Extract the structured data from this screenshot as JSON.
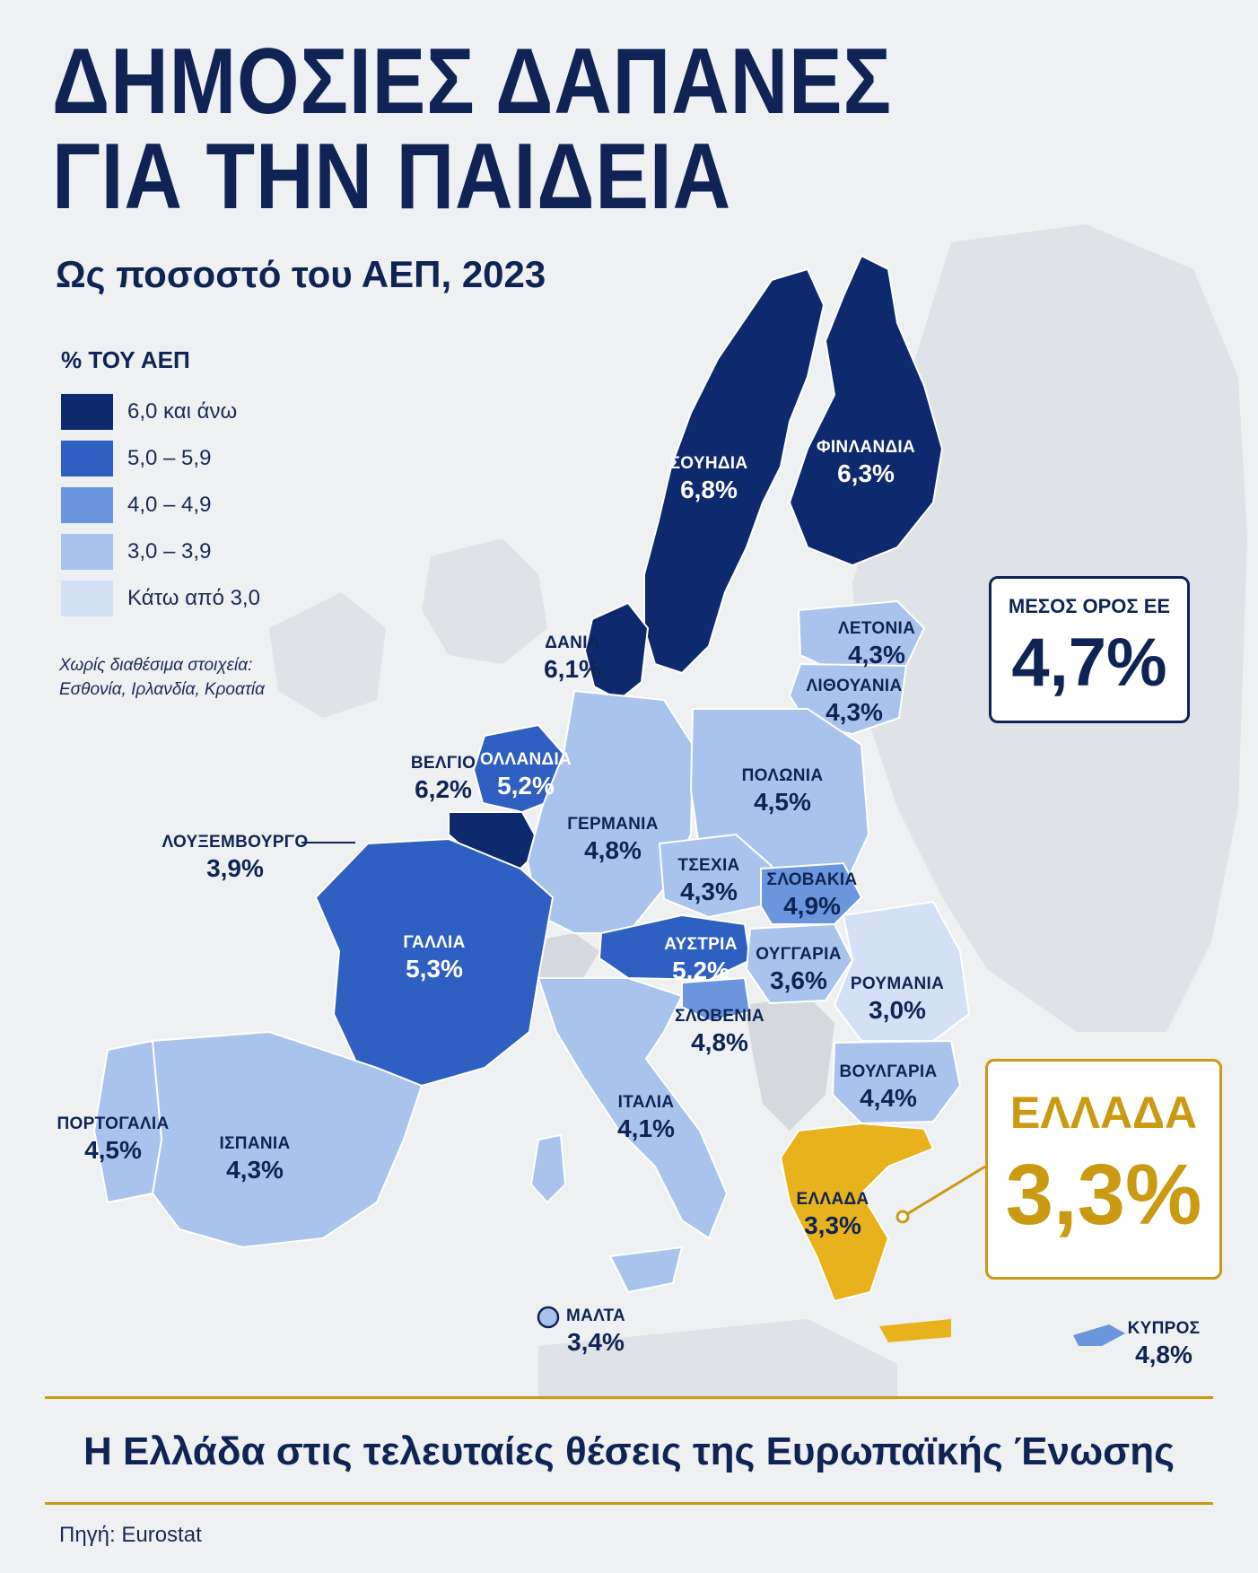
{
  "header": {
    "title_line1": "ΔΗΜΟΣΙΕΣ ΔΑΠΑΝΕΣ",
    "title_line2": "ΓΙΑ ΤΗΝ ΠΑΙΔΕΙΑ",
    "subtitle": "Ως ποσοστό του ΑΕΠ, 2023"
  },
  "legend": {
    "title": "% ΤΟΥ ΑΕΠ",
    "items": [
      {
        "label": "6,0 και άνω",
        "color": "#0d2a6e"
      },
      {
        "label": "5,0 – 5,9",
        "color": "#2f5fc0"
      },
      {
        "label": "4,0 – 4,9",
        "color": "#6b95dc"
      },
      {
        "label": "3,0 – 3,9",
        "color": "#a9c4ec"
      },
      {
        "label": "Κάτω από 3,0",
        "color": "#d3e0f6"
      }
    ],
    "note_line1": "Χωρίς διαθέσιμα στοιχεία:",
    "note_line2": "Εσθονία, Ιρλανδία, Κροατία"
  },
  "countries": {
    "sweden": {
      "name": "ΣΟΥΗΔΙΑ",
      "value": "6,8%",
      "pct": 6.8
    },
    "finland": {
      "name": "ΦΙΝΛΑΝΔΙΑ",
      "value": "6,3%",
      "pct": 6.3
    },
    "denmark": {
      "name": "ΔΑΝΙΑ",
      "value": "6,1%",
      "pct": 6.1
    },
    "latvia": {
      "name": "ΛΕΤΟΝΙΑ",
      "value": "4,3%",
      "pct": 4.3
    },
    "lithuania": {
      "name": "ΛΙΘΟΥΑΝΙΑ",
      "value": "4,3%",
      "pct": 4.3
    },
    "belgium": {
      "name": "ΒΕΛΓΙΟ",
      "value": "6,2%",
      "pct": 6.2
    },
    "netherlands": {
      "name": "ΟΛΛΑΝΔΙΑ",
      "value": "5,2%",
      "pct": 5.2
    },
    "luxembourg": {
      "name": "ΛΟΥΞΕΜΒΟΥΡΓΟ",
      "value": "3,9%",
      "pct": 3.9
    },
    "germany": {
      "name": "ΓΕΡΜΑΝΙΑ",
      "value": "4,8%",
      "pct": 4.8
    },
    "poland": {
      "name": "ΠΟΛΩΝΙΑ",
      "value": "4,5%",
      "pct": 4.5
    },
    "czechia": {
      "name": "ΤΣΕΧΙΑ",
      "value": "4,3%",
      "pct": 4.3
    },
    "slovakia": {
      "name": "ΣΛΟΒΑΚΙΑ",
      "value": "4,9%",
      "pct": 4.9
    },
    "france": {
      "name": "ΓΑΛΛΙΑ",
      "value": "5,3%",
      "pct": 5.3
    },
    "austria": {
      "name": "ΑΥΣΤΡΙΑ",
      "value": "5,2%",
      "pct": 5.2
    },
    "hungary": {
      "name": "ΟΥΓΓΑΡΙΑ",
      "value": "3,6%",
      "pct": 3.6
    },
    "romania": {
      "name": "ΡΟΥΜΑΝΙΑ",
      "value": "3,0%",
      "pct": 3.0
    },
    "slovenia": {
      "name": "ΣΛΟΒΕΝΙΑ",
      "value": "4,8%",
      "pct": 4.8
    },
    "bulgaria": {
      "name": "ΒΟΥΛΓΑΡΙΑ",
      "value": "4,4%",
      "pct": 4.4
    },
    "portugal": {
      "name": "ΠΟΡΤΟΓΑΛΙΑ",
      "value": "4,5%",
      "pct": 4.5
    },
    "spain": {
      "name": "ΙΣΠΑΝΙΑ",
      "value": "4,3%",
      "pct": 4.3
    },
    "italy": {
      "name": "ΙΤΑΛΙΑ",
      "value": "4,1%",
      "pct": 4.1
    },
    "greece": {
      "name": "ΕΛΛΑΔΑ",
      "value": "3,3%",
      "pct": 3.3
    },
    "malta": {
      "name": "ΜΑΛΤΑ",
      "value": "3,4%",
      "pct": 3.4
    },
    "cyprus": {
      "name": "ΚΥΠΡΟΣ",
      "value": "4,8%",
      "pct": 4.8
    }
  },
  "eu_average": {
    "label": "ΜΕΣΟΣ ΟΡΟΣ ΕΕ",
    "value": "4,7%",
    "pct": 4.7
  },
  "greece_highlight": {
    "label": "ΕΛΛΑΔΑ",
    "value": "3,3%",
    "color": "#e8b21c"
  },
  "footer": {
    "headline": "Η Ελλάδα στις τελευταίες θέσεις της Ευρωπαϊκής Ένωσης",
    "source": "Πηγή: Eurostat"
  },
  "colors": {
    "navy": "#0f2455",
    "gold": "#c99a12",
    "background_land": "#dde1e6",
    "no_data": "#d8dade"
  }
}
